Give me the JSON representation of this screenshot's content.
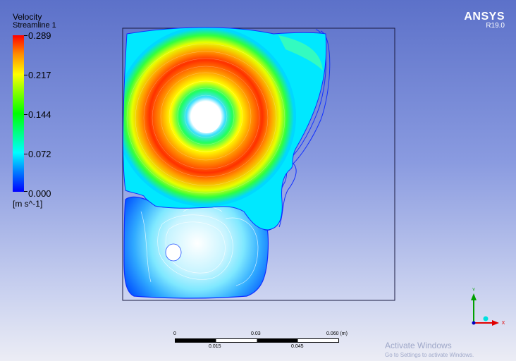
{
  "legend": {
    "title": "Velocity",
    "subtitle": "Streamline 1",
    "ticks": [
      "0.289",
      "0.217",
      "0.144",
      "0.072",
      "0.000"
    ],
    "units": "[m s^-1]"
  },
  "brand": {
    "name": "ANSYS",
    "version": "R19.0"
  },
  "scale_bar": {
    "labels_top": [
      "0",
      "0.03",
      "0.060  (m)"
    ],
    "labels_bottom": [
      "0.015",
      "0.045"
    ]
  },
  "axes_triad": {
    "y_label": "Y",
    "x_label": "X"
  },
  "watermark": {
    "title": "Activate Windows",
    "subtitle": "Go to Settings to activate Windows."
  },
  "colors": {
    "background_top": "#5c71c9",
    "background_bottom": "#ecedf5",
    "max_velocity": "#ff0000",
    "min_velocity": "#0000ff",
    "triad_y": "#00a000",
    "triad_x": "#e00000"
  }
}
